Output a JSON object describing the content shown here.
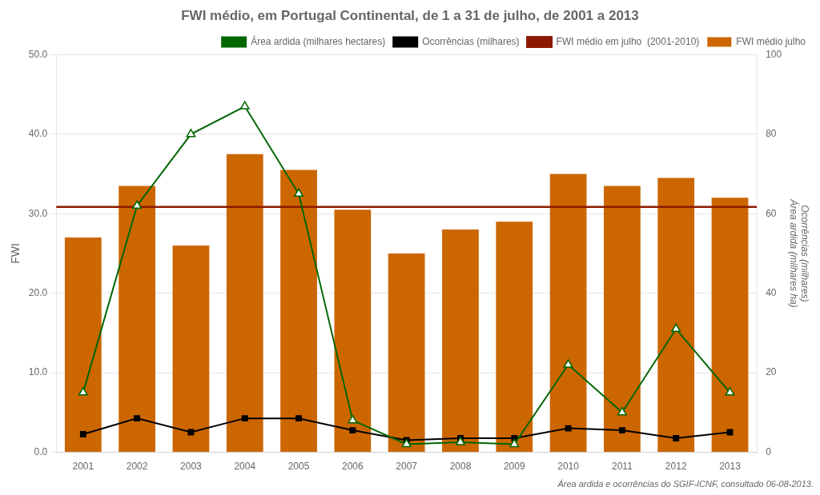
{
  "chart_data": {
    "type": "bar",
    "title": "FWI médio, em Portugal Continental, de 1 a 31 de julho, de 2001 a 2013",
    "categories": [
      "2001",
      "2002",
      "2003",
      "2004",
      "2005",
      "2006",
      "2007",
      "2008",
      "2009",
      "2010",
      "2011",
      "2012",
      "2013"
    ],
    "series": [
      {
        "name": "FWI médio julho",
        "type": "bar",
        "color": "#cc6600",
        "values": [
          27.0,
          33.5,
          26.0,
          37.5,
          35.5,
          30.5,
          25.0,
          28.0,
          29.0,
          35.0,
          33.5,
          34.5,
          32.0
        ]
      },
      {
        "name": "FWI médio em julho  (2001-2010)",
        "type": "hline",
        "color": "#8B1A00",
        "value": 30.84
      },
      {
        "name": "Área ardida (milhares hectares)",
        "type": "line",
        "axis": "y2",
        "color": "#006600",
        "marker": "triangle",
        "values": [
          15.0,
          62.0,
          80.0,
          87.0,
          65.0,
          8.0,
          2.0,
          2.5,
          2.0,
          22.0,
          10.0,
          31.0,
          15.0
        ]
      },
      {
        "name": "Ocorrências (milhares)",
        "type": "line",
        "axis": "y2",
        "color": "#000000",
        "marker": "square",
        "values": [
          4.5,
          8.5,
          5.0,
          8.5,
          8.5,
          5.5,
          3.0,
          3.5,
          3.5,
          6.0,
          5.5,
          3.5,
          5.0
        ]
      }
    ],
    "ylabel": "FWI",
    "y2label": "Ocorrências (milhares)\nÁrea ardida (milhares ha)",
    "ylim": [
      0,
      50
    ],
    "yticks": [
      {
        "value": 0,
        "label": "0.0"
      },
      {
        "value": 10,
        "label": "10.0"
      },
      {
        "value": 20,
        "label": "20.0"
      },
      {
        "value": 30,
        "label": "30.0"
      },
      {
        "value": 40,
        "label": "40.0"
      },
      {
        "value": 50,
        "label": "50.0"
      }
    ],
    "y2lim": [
      0,
      100
    ],
    "y2ticks": [
      0,
      20,
      40,
      60,
      80,
      100
    ],
    "grid": true,
    "legend": "upper right",
    "annotations": [
      "Área ardida e ocorrências do SGIF-ICNF, consultado 06-08-2013."
    ]
  }
}
